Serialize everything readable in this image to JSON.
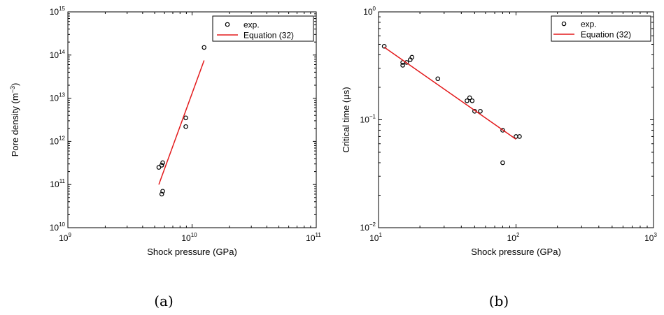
{
  "chart_data": [
    {
      "type": "scatter",
      "panel_label": "(a)",
      "xlabel": "Shock pressure (GPa)",
      "ylabel_main": "Pore density (m",
      "ylabel_sup": "−3",
      "ylabel_close": ")",
      "xscale": "log",
      "yscale": "log",
      "xlim": [
        1000000000,
        100000000000
      ],
      "ylim": [
        10000000000,
        1000000000000000
      ],
      "grid": false,
      "legend_position": "top-right",
      "x_ticks": [
        {
          "value": 1000000000,
          "base": "10",
          "exp": "9"
        },
        {
          "value": 10000000000,
          "base": "10",
          "exp": "10"
        },
        {
          "value": 100000000000,
          "base": "10",
          "exp": "11"
        }
      ],
      "y_ticks": [
        {
          "value": 10000000000,
          "base": "10",
          "exp": "10"
        },
        {
          "value": 100000000000,
          "base": "10",
          "exp": "11"
        },
        {
          "value": 1000000000000,
          "base": "10",
          "exp": "12"
        },
        {
          "value": 10000000000000,
          "base": "10",
          "exp": "13"
        },
        {
          "value": 100000000000000,
          "base": "10",
          "exp": "14"
        },
        {
          "value": 1000000000000000,
          "base": "10",
          "exp": "15"
        }
      ],
      "series": [
        {
          "name": "exp.",
          "kind": "markers",
          "color": "#000000",
          "points": [
            {
              "x": 5400000000,
              "y": 250000000000
            },
            {
              "x": 5700000000,
              "y": 280000000000
            },
            {
              "x": 5800000000,
              "y": 320000000000
            },
            {
              "x": 5800000000,
              "y": 70000000000
            },
            {
              "x": 5700000000,
              "y": 60000000000
            },
            {
              "x": 8900000000,
              "y": 3500000000000
            },
            {
              "x": 8900000000,
              "y": 2200000000000
            },
            {
              "x": 12500000000,
              "y": 150000000000000
            }
          ]
        },
        {
          "name": "Equation (32)",
          "kind": "line",
          "color": "#e31a1c",
          "points": [
            {
              "x": 5400000000,
              "y": 100000000000
            },
            {
              "x": 12500000000,
              "y": 75000000000000
            }
          ]
        }
      ]
    },
    {
      "type": "scatter",
      "panel_label": "(b)",
      "xlabel": "Shock pressure (GPa)",
      "ylabel_main": "Critical time (μs)",
      "xscale": "log",
      "yscale": "log",
      "xlim": [
        10,
        1000
      ],
      "ylim": [
        0.01,
        1
      ],
      "grid": false,
      "legend_position": "top-right",
      "x_ticks": [
        {
          "value": 10,
          "base": "10",
          "exp": "1"
        },
        {
          "value": 100,
          "base": "10",
          "exp": "2"
        },
        {
          "value": 1000,
          "base": "10",
          "exp": "3"
        }
      ],
      "y_ticks": [
        {
          "value": 0.01,
          "base": "10",
          "exp": "−2"
        },
        {
          "value": 0.1,
          "base": "10",
          "exp": "−1"
        },
        {
          "value": 1,
          "base": "10",
          "exp": "0"
        }
      ],
      "series": [
        {
          "name": "exp.",
          "kind": "markers",
          "color": "#000000",
          "points": [
            {
              "x": 11,
              "y": 0.48
            },
            {
              "x": 15,
              "y": 0.34
            },
            {
              "x": 15,
              "y": 0.32
            },
            {
              "x": 16,
              "y": 0.34
            },
            {
              "x": 17,
              "y": 0.36
            },
            {
              "x": 17.5,
              "y": 0.38
            },
            {
              "x": 27,
              "y": 0.24
            },
            {
              "x": 44,
              "y": 0.15
            },
            {
              "x": 46,
              "y": 0.16
            },
            {
              "x": 48,
              "y": 0.15
            },
            {
              "x": 50,
              "y": 0.12
            },
            {
              "x": 55,
              "y": 0.12
            },
            {
              "x": 80,
              "y": 0.08
            },
            {
              "x": 80,
              "y": 0.04
            },
            {
              "x": 100,
              "y": 0.07
            },
            {
              "x": 106,
              "y": 0.07
            }
          ]
        },
        {
          "name": "Equation (32)",
          "kind": "line",
          "color": "#e31a1c",
          "points": [
            {
              "x": 11,
              "y": 0.47
            },
            {
              "x": 100,
              "y": 0.066
            }
          ]
        }
      ]
    }
  ]
}
